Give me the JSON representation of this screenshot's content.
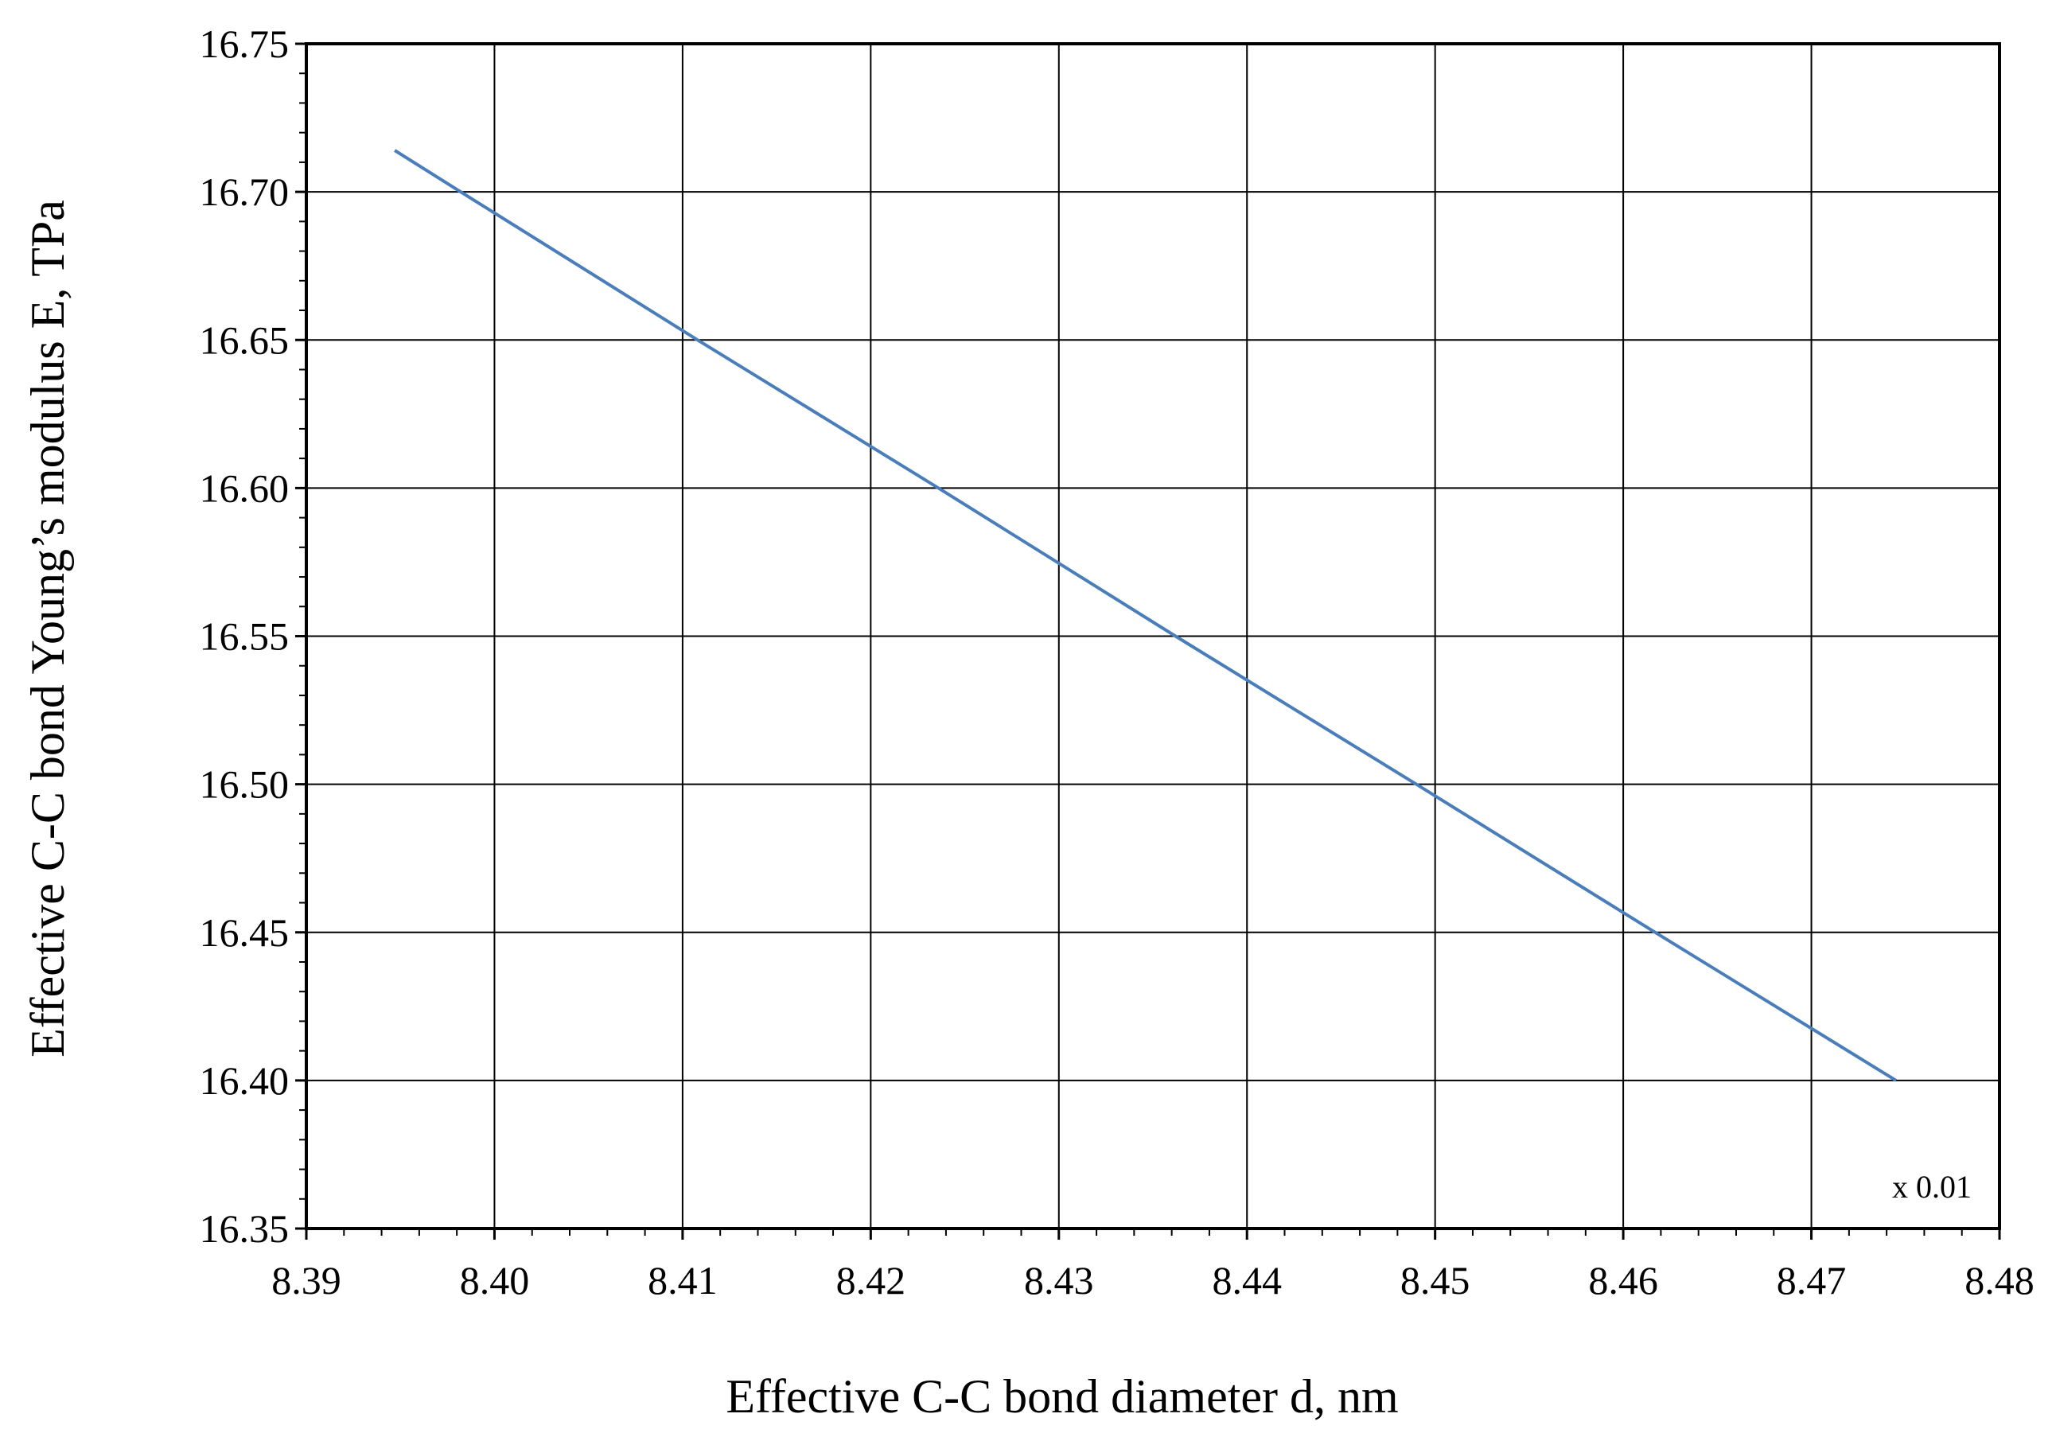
{
  "chart_data": {
    "type": "line",
    "title": "",
    "xlabel": "Effective C-C bond diameter d, nm",
    "ylabel": "Effective C-C bond Young’s modulus E, TPa",
    "xlim": [
      8.39,
      8.48
    ],
    "ylim": [
      16.35,
      16.75
    ],
    "x_ticks": [
      "8.39",
      "8.40",
      "8.41",
      "8.42",
      "8.43",
      "8.44",
      "8.45",
      "8.46",
      "8.47",
      "8.48"
    ],
    "y_ticks": [
      "16.35",
      "16.40",
      "16.45",
      "16.50",
      "16.55",
      "16.60",
      "16.65",
      "16.70",
      "16.75"
    ],
    "annotation": "x 0.01",
    "grid": true,
    "legend": "none",
    "series": [
      {
        "color": "#4a7ebb",
        "x": [
          8.3947,
          8.3982,
          8.4108,
          8.4236,
          8.4362,
          8.449,
          8.4617,
          8.4745
        ],
        "y": [
          16.714,
          16.7,
          16.65,
          16.6,
          16.55,
          16.5,
          16.45,
          16.4
        ]
      }
    ]
  }
}
